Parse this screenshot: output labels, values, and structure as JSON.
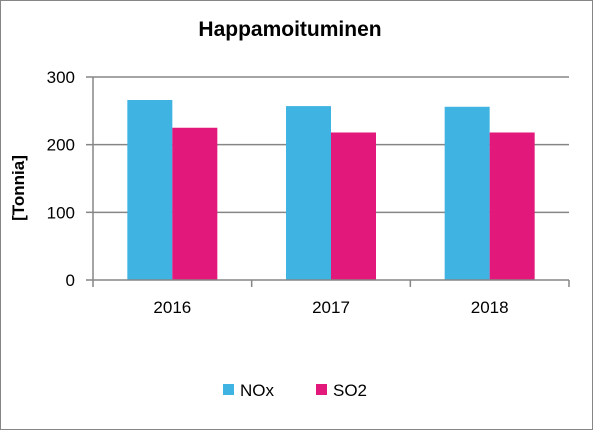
{
  "chart_data": {
    "type": "bar",
    "title": "Happamoituminen",
    "xlabel": "",
    "ylabel": "[Tonnia]",
    "categories": [
      "2016",
      "2017",
      "2018"
    ],
    "series": [
      {
        "name": "NOx",
        "color": "#3FB4E3",
        "values": [
          266,
          257,
          256
        ]
      },
      {
        "name": "SO2",
        "color": "#E2197B",
        "values": [
          225,
          218,
          218
        ]
      }
    ],
    "ylim": [
      0,
      300
    ],
    "yticks": [
      0,
      100,
      200,
      300
    ],
    "ytick_labels": [
      "0",
      "100",
      "200",
      "300"
    ],
    "grid": true,
    "legend_position": "bottom"
  }
}
